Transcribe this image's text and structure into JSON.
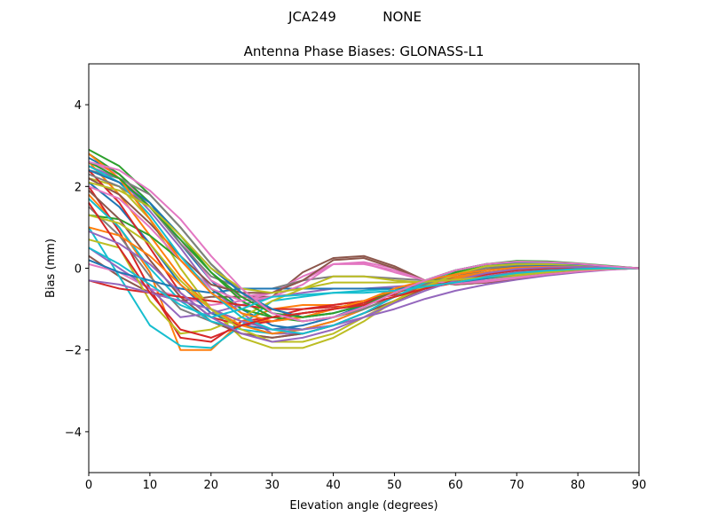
{
  "chart_data": {
    "type": "line",
    "suptitle": "JCA249           NONE",
    "title": "Antenna Phase Biases: GLONASS-L1",
    "xlabel": "Elevation angle (degrees)",
    "ylabel": "Bias (mm)",
    "xlim": [
      0,
      90
    ],
    "ylim": [
      -5,
      5
    ],
    "xticks": [
      0,
      10,
      20,
      30,
      40,
      50,
      60,
      70,
      80,
      90
    ],
    "yticks": [
      -4,
      -2,
      0,
      2,
      4
    ],
    "ytick_labels": [
      "−4",
      "−2",
      "0",
      "2",
      "4"
    ],
    "grid": false,
    "legend": "none",
    "x": [
      0,
      5,
      10,
      15,
      20,
      25,
      30,
      35,
      40,
      45,
      50,
      55,
      60,
      65,
      70,
      75,
      80,
      85,
      90
    ],
    "series": [
      {
        "color": "#1f77b4",
        "values": [
          2.7,
          2.3,
          1.6,
          0.6,
          -0.3,
          -1.0,
          -1.4,
          -1.5,
          -1.3,
          -1.0,
          -0.7,
          -0.4,
          -0.2,
          -0.05,
          0.05,
          0.08,
          0.07,
          0.04,
          0.0
        ]
      },
      {
        "color": "#ff7f0e",
        "values": [
          1.8,
          1.0,
          -0.1,
          -2.0,
          -2.0,
          -1.3,
          -1.0,
          -0.9,
          -0.9,
          -0.8,
          -0.6,
          -0.4,
          -0.3,
          -0.2,
          -0.1,
          -0.05,
          -0.02,
          0.0,
          0.0
        ]
      },
      {
        "color": "#2ca02c",
        "values": [
          2.9,
          2.5,
          1.8,
          1.0,
          0.1,
          -0.6,
          -1.0,
          -1.2,
          -1.1,
          -0.9,
          -0.6,
          -0.3,
          -0.05,
          0.1,
          0.15,
          0.15,
          0.1,
          0.05,
          0.0
        ]
      },
      {
        "color": "#d62728",
        "values": [
          2.0,
          0.9,
          -0.5,
          -1.7,
          -1.8,
          -1.3,
          -1.2,
          -1.0,
          -0.95,
          -0.9,
          -0.7,
          -0.5,
          -0.35,
          -0.2,
          -0.1,
          -0.05,
          -0.02,
          0.0,
          0.0
        ]
      },
      {
        "color": "#9467bd",
        "values": [
          2.5,
          2.2,
          1.4,
          0.5,
          -0.5,
          -1.1,
          -1.6,
          -1.6,
          -1.4,
          -1.1,
          -0.8,
          -0.5,
          -0.3,
          -0.15,
          -0.05,
          0.0,
          0.02,
          0.02,
          0.0
        ]
      },
      {
        "color": "#8c564b",
        "values": [
          0.3,
          -0.2,
          -0.6,
          -0.8,
          -0.7,
          -0.7,
          -0.7,
          -0.1,
          0.25,
          0.3,
          0.05,
          -0.3,
          -0.4,
          -0.35,
          -0.25,
          -0.15,
          -0.08,
          -0.03,
          0.0
        ]
      },
      {
        "color": "#e377c2",
        "values": [
          0.1,
          -0.1,
          -0.5,
          -0.7,
          -0.9,
          -0.8,
          -0.6,
          -0.2,
          0.1,
          0.15,
          0.0,
          -0.3,
          -0.4,
          -0.35,
          -0.25,
          -0.15,
          -0.08,
          -0.03,
          0.0
        ]
      },
      {
        "color": "#7f7f7f",
        "values": [
          1.5,
          0.8,
          -0.2,
          -1.0,
          -1.3,
          -1.6,
          -1.7,
          -1.6,
          -1.4,
          -1.1,
          -0.8,
          -0.5,
          -0.3,
          -0.15,
          -0.05,
          0.0,
          0.02,
          0.01,
          0.0
        ]
      },
      {
        "color": "#bcbd22",
        "values": [
          2.2,
          2.0,
          1.2,
          0.0,
          -1.0,
          -1.7,
          -1.95,
          -1.95,
          -1.7,
          -1.3,
          -0.8,
          -0.4,
          -0.1,
          0.05,
          0.1,
          0.1,
          0.08,
          0.04,
          0.0
        ]
      },
      {
        "color": "#17becf",
        "values": [
          1.0,
          -0.2,
          -1.4,
          -1.9,
          -1.95,
          -1.4,
          -0.8,
          -0.7,
          -0.6,
          -0.55,
          -0.5,
          -0.4,
          -0.3,
          -0.2,
          -0.1,
          -0.05,
          -0.02,
          0.0,
          0.0
        ]
      },
      {
        "color": "#1f77b4",
        "values": [
          2.1,
          1.5,
          0.6,
          -0.4,
          -1.1,
          -1.4,
          -1.5,
          -1.4,
          -1.2,
          -0.9,
          -0.6,
          -0.35,
          -0.15,
          0.0,
          0.05,
          0.06,
          0.05,
          0.02,
          0.0
        ]
      },
      {
        "color": "#ff7f0e",
        "values": [
          2.6,
          1.8,
          0.8,
          -0.2,
          -1.0,
          -1.3,
          -1.3,
          -1.2,
          -1.0,
          -0.8,
          -0.55,
          -0.35,
          -0.2,
          -0.1,
          -0.03,
          0.0,
          0.01,
          0.01,
          0.0
        ]
      },
      {
        "color": "#2ca02c",
        "values": [
          1.3,
          1.2,
          0.8,
          0.2,
          -0.5,
          -1.0,
          -1.2,
          -1.1,
          -1.0,
          -0.8,
          -0.6,
          -0.4,
          -0.25,
          -0.12,
          -0.05,
          -0.01,
          0.0,
          0.0,
          0.0
        ]
      },
      {
        "color": "#d62728",
        "values": [
          2.4,
          1.6,
          0.5,
          -0.6,
          -1.2,
          -1.4,
          -1.3,
          -1.1,
          -1.0,
          -0.85,
          -0.6,
          -0.4,
          -0.25,
          -0.12,
          -0.04,
          0.0,
          0.01,
          0.01,
          0.0
        ]
      },
      {
        "color": "#9467bd",
        "values": [
          0.5,
          0.0,
          -0.5,
          -1.2,
          -1.1,
          -0.9,
          -0.7,
          -0.6,
          -0.5,
          -0.5,
          -0.45,
          -0.4,
          -0.3,
          -0.2,
          -0.1,
          -0.05,
          -0.02,
          0.0,
          0.0
        ]
      },
      {
        "color": "#8c564b",
        "values": [
          1.9,
          1.2,
          0.2,
          -0.7,
          -1.3,
          -1.6,
          -1.7,
          -1.6,
          -1.4,
          -1.1,
          -0.8,
          -0.5,
          -0.3,
          -0.15,
          -0.05,
          0.0,
          0.02,
          0.01,
          0.0
        ]
      },
      {
        "color": "#e377c2",
        "values": [
          2.6,
          2.3,
          1.5,
          0.7,
          -0.3,
          -0.7,
          -0.6,
          -0.3,
          0.1,
          0.12,
          -0.1,
          -0.3,
          -0.35,
          -0.3,
          -0.22,
          -0.14,
          -0.07,
          -0.03,
          0.0
        ]
      },
      {
        "color": "#7f7f7f",
        "values": [
          2.3,
          2.0,
          1.5,
          0.6,
          -0.2,
          -0.5,
          -0.5,
          -0.3,
          -0.2,
          -0.2,
          -0.25,
          -0.3,
          -0.3,
          -0.25,
          -0.18,
          -0.1,
          -0.05,
          -0.02,
          0.0
        ]
      },
      {
        "color": "#bcbd22",
        "values": [
          0.7,
          0.5,
          -0.8,
          -1.6,
          -1.5,
          -1.2,
          -0.8,
          -0.5,
          -0.2,
          -0.2,
          -0.3,
          -0.35,
          -0.3,
          -0.25,
          -0.18,
          -0.1,
          -0.05,
          -0.02,
          0.0
        ]
      },
      {
        "color": "#17becf",
        "values": [
          1.7,
          1.0,
          0.0,
          -0.8,
          -1.3,
          -1.5,
          -1.6,
          -1.5,
          -1.3,
          -1.0,
          -0.7,
          -0.45,
          -0.25,
          -0.1,
          -0.02,
          0.02,
          0.02,
          0.01,
          0.0
        ]
      },
      {
        "color": "#1f77b4",
        "values": [
          0.2,
          -0.1,
          -0.3,
          -0.5,
          -0.6,
          -0.5,
          -0.5,
          -0.5,
          -0.5,
          -0.5,
          -0.5,
          -0.45,
          -0.35,
          -0.25,
          -0.15,
          -0.08,
          -0.04,
          -0.01,
          0.0
        ]
      },
      {
        "color": "#ff7f0e",
        "values": [
          1.0,
          0.8,
          0.3,
          -0.4,
          -1.0,
          -1.4,
          -1.6,
          -1.5,
          -1.3,
          -1.0,
          -0.7,
          -0.45,
          -0.25,
          -0.1,
          -0.02,
          0.02,
          0.02,
          0.01,
          0.0
        ]
      },
      {
        "color": "#2ca02c",
        "values": [
          2.8,
          2.3,
          1.6,
          0.8,
          -0.1,
          -0.8,
          -1.2,
          -1.3,
          -1.2,
          -1.0,
          -0.7,
          -0.4,
          -0.1,
          0.05,
          0.12,
          0.12,
          0.09,
          0.04,
          0.0
        ]
      },
      {
        "color": "#d62728",
        "values": [
          -0.3,
          -0.5,
          -0.6,
          -0.7,
          -0.8,
          -0.9,
          -1.0,
          -1.0,
          -0.9,
          -0.8,
          -0.65,
          -0.5,
          -0.35,
          -0.22,
          -0.12,
          -0.06,
          -0.02,
          0.0,
          0.0
        ]
      },
      {
        "color": "#9467bd",
        "values": [
          -0.3,
          -0.4,
          -0.6,
          -0.8,
          -1.0,
          -1.3,
          -1.5,
          -1.5,
          -1.4,
          -1.2,
          -1.0,
          -0.75,
          -0.55,
          -0.4,
          -0.28,
          -0.18,
          -0.1,
          -0.04,
          0.0
        ]
      },
      {
        "color": "#8c564b",
        "values": [
          2.2,
          1.8,
          1.1,
          0.3,
          -0.4,
          -0.6,
          -0.6,
          -0.3,
          0.2,
          0.25,
          0.0,
          -0.3,
          -0.4,
          -0.35,
          -0.25,
          -0.15,
          -0.08,
          -0.03,
          0.0
        ]
      },
      {
        "color": "#e377c2",
        "values": [
          2.0,
          1.7,
          1.0,
          0.2,
          -0.5,
          -0.8,
          -0.7,
          -0.4,
          0.1,
          0.1,
          -0.05,
          -0.3,
          -0.38,
          -0.33,
          -0.24,
          -0.15,
          -0.08,
          -0.03,
          0.0
        ]
      },
      {
        "color": "#7f7f7f",
        "values": [
          2.4,
          2.2,
          1.8,
          1.0,
          0.1,
          -0.6,
          -1.1,
          -1.3,
          -1.2,
          -1.0,
          -0.7,
          -0.4,
          -0.15,
          0.0,
          0.08,
          0.1,
          0.08,
          0.04,
          0.0
        ]
      },
      {
        "color": "#bcbd22",
        "values": [
          1.3,
          1.1,
          0.6,
          -0.3,
          -1.0,
          -1.5,
          -1.8,
          -1.8,
          -1.6,
          -1.2,
          -0.8,
          -0.45,
          -0.15,
          0.05,
          0.1,
          0.1,
          0.08,
          0.04,
          0.0
        ]
      },
      {
        "color": "#17becf",
        "values": [
          2.5,
          2.1,
          1.3,
          0.3,
          -0.6,
          -1.2,
          -1.5,
          -1.6,
          -1.4,
          -1.1,
          -0.7,
          -0.35,
          -0.05,
          0.1,
          0.15,
          0.14,
          0.1,
          0.05,
          0.0
        ]
      },
      {
        "color": "#1f77b4",
        "values": [
          2.4,
          2.1,
          1.6,
          0.8,
          0.0,
          -0.6,
          -1.0,
          -1.2,
          -1.1,
          -0.9,
          -0.6,
          -0.3,
          -0.05,
          0.1,
          0.15,
          0.15,
          0.1,
          0.05,
          0.0
        ]
      },
      {
        "color": "#ff7f0e",
        "values": [
          2.8,
          2.2,
          1.2,
          0.2,
          -0.6,
          -1.1,
          -1.3,
          -1.2,
          -1.0,
          -0.8,
          -0.5,
          -0.3,
          -0.15,
          -0.05,
          0.02,
          0.04,
          0.03,
          0.02,
          0.0
        ]
      },
      {
        "color": "#2ca02c",
        "values": [
          2.6,
          2.2,
          1.5,
          0.7,
          -0.1,
          -0.7,
          -1.1,
          -1.2,
          -1.1,
          -0.9,
          -0.6,
          -0.3,
          -0.05,
          0.1,
          0.18,
          0.17,
          0.12,
          0.06,
          0.0
        ]
      },
      {
        "color": "#d62728",
        "values": [
          1.6,
          0.5,
          -0.6,
          -1.5,
          -1.7,
          -1.4,
          -1.2,
          -1.1,
          -1.0,
          -0.9,
          -0.7,
          -0.5,
          -0.3,
          -0.15,
          -0.05,
          0.0,
          0.01,
          0.01,
          0.0
        ]
      },
      {
        "color": "#9467bd",
        "values": [
          0.9,
          0.6,
          0.1,
          -0.6,
          -1.2,
          -1.6,
          -1.8,
          -1.7,
          -1.5,
          -1.2,
          -0.85,
          -0.55,
          -0.3,
          -0.12,
          -0.02,
          0.02,
          0.03,
          0.02,
          0.0
        ]
      },
      {
        "color": "#bcbd22",
        "values": [
          2.1,
          1.9,
          1.5,
          0.8,
          0.0,
          -0.5,
          -0.6,
          -0.5,
          -0.35,
          -0.35,
          -0.35,
          -0.33,
          -0.28,
          -0.22,
          -0.15,
          -0.09,
          -0.04,
          -0.01,
          0.0
        ]
      },
      {
        "color": "#17becf",
        "values": [
          0.5,
          0.1,
          -0.4,
          -0.9,
          -1.2,
          -1.0,
          -0.7,
          -0.65,
          -0.6,
          -0.6,
          -0.55,
          -0.45,
          -0.35,
          -0.22,
          -0.12,
          -0.06,
          -0.02,
          0.0,
          0.0
        ]
      },
      {
        "color": "#e377c2",
        "values": [
          2.6,
          2.4,
          1.9,
          1.2,
          0.3,
          -0.5,
          -1.1,
          -1.3,
          -1.2,
          -0.95,
          -0.6,
          -0.3,
          -0.05,
          0.1,
          0.16,
          0.15,
          0.11,
          0.05,
          0.0
        ]
      }
    ]
  }
}
